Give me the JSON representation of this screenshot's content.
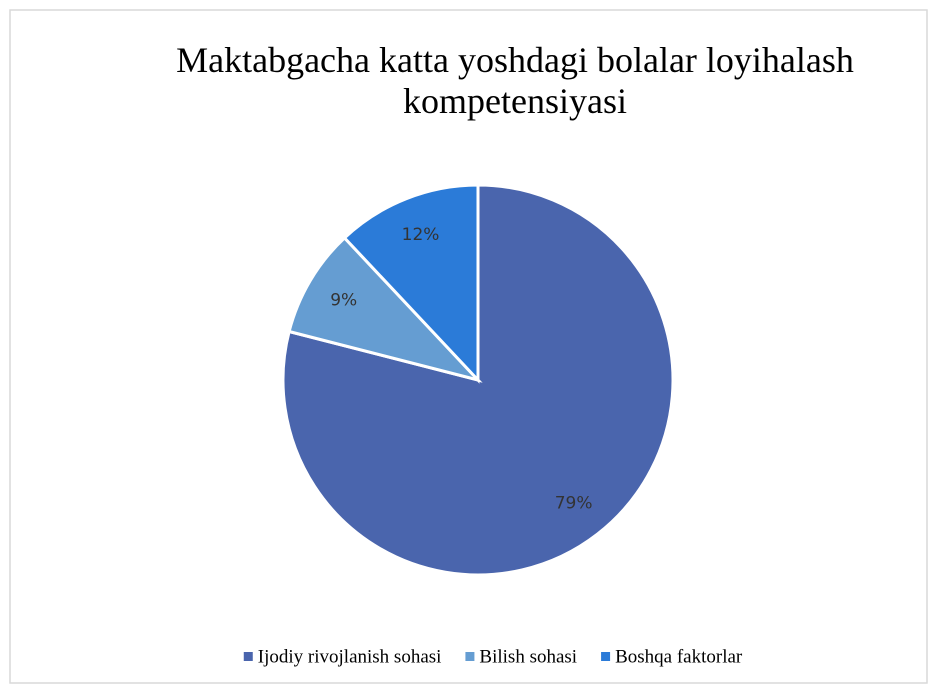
{
  "chart_data": {
    "type": "pie",
    "title": "Maktabgacha katta yoshdagi bolalar loyihalash kompetensiyasi",
    "categories": [
      "Ijodiy rivojlanish sohasi",
      "Bilish sohasi",
      "Boshqa faktorlar"
    ],
    "values": [
      79,
      9,
      12
    ],
    "value_labels": [
      "79%",
      "9%",
      "12%"
    ],
    "colors": [
      "#4a65ad",
      "#659dd2",
      "#2b7bd8"
    ],
    "legend": "bottom"
  }
}
